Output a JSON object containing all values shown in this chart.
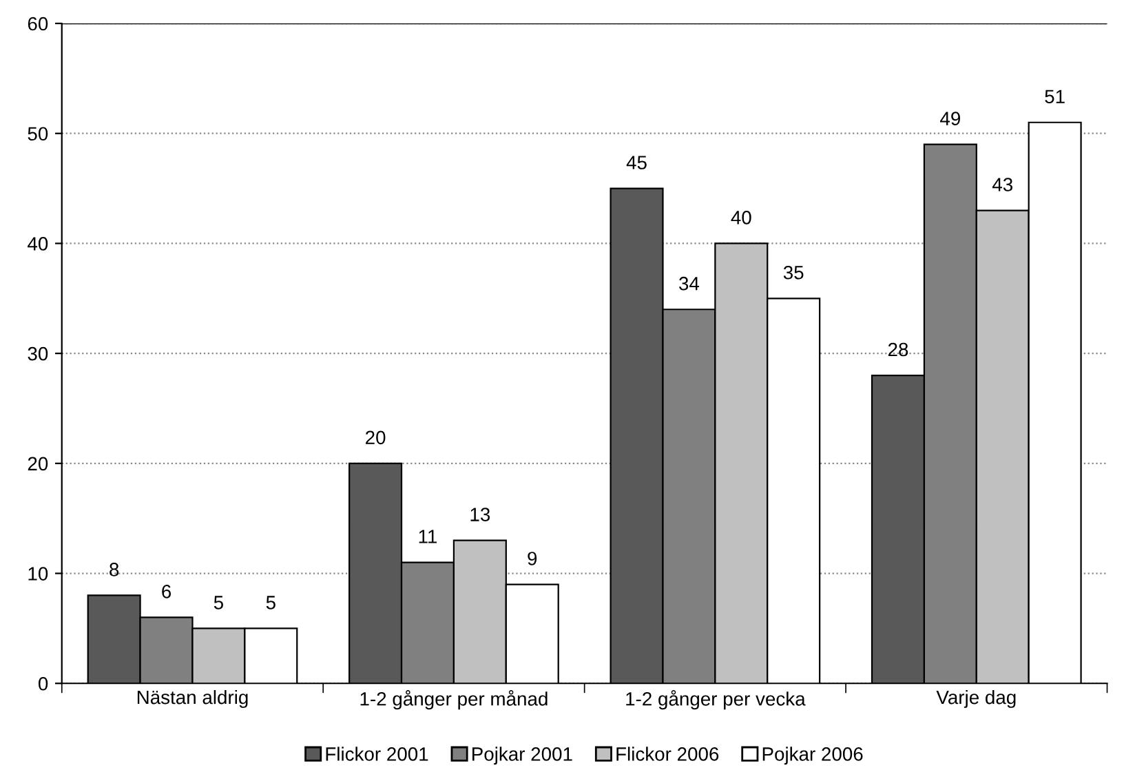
{
  "chart_data": {
    "type": "bar",
    "categories": [
      "Nästan aldrig",
      "1-2 gånger per månad",
      "1-2 gånger per vecka",
      "Varje dag"
    ],
    "series": [
      {
        "name": "Flickor 2001",
        "color": "#595959",
        "values": [
          8,
          20,
          45,
          28
        ]
      },
      {
        "name": "Pojkar 2001",
        "color": "#808080",
        "values": [
          6,
          11,
          34,
          49
        ]
      },
      {
        "name": "Flickor 2006",
        "color": "#c0c0c0",
        "values": [
          5,
          13,
          40,
          43
        ]
      },
      {
        "name": "Pojkar 2006",
        "color": "#ffffff",
        "values": [
          5,
          9,
          35,
          51
        ]
      }
    ],
    "ylim": [
      0,
      60
    ],
    "yticks": [
      0,
      10,
      20,
      30,
      40,
      50,
      60
    ],
    "grid": "y",
    "legend": "bottom",
    "data_labels": true
  }
}
